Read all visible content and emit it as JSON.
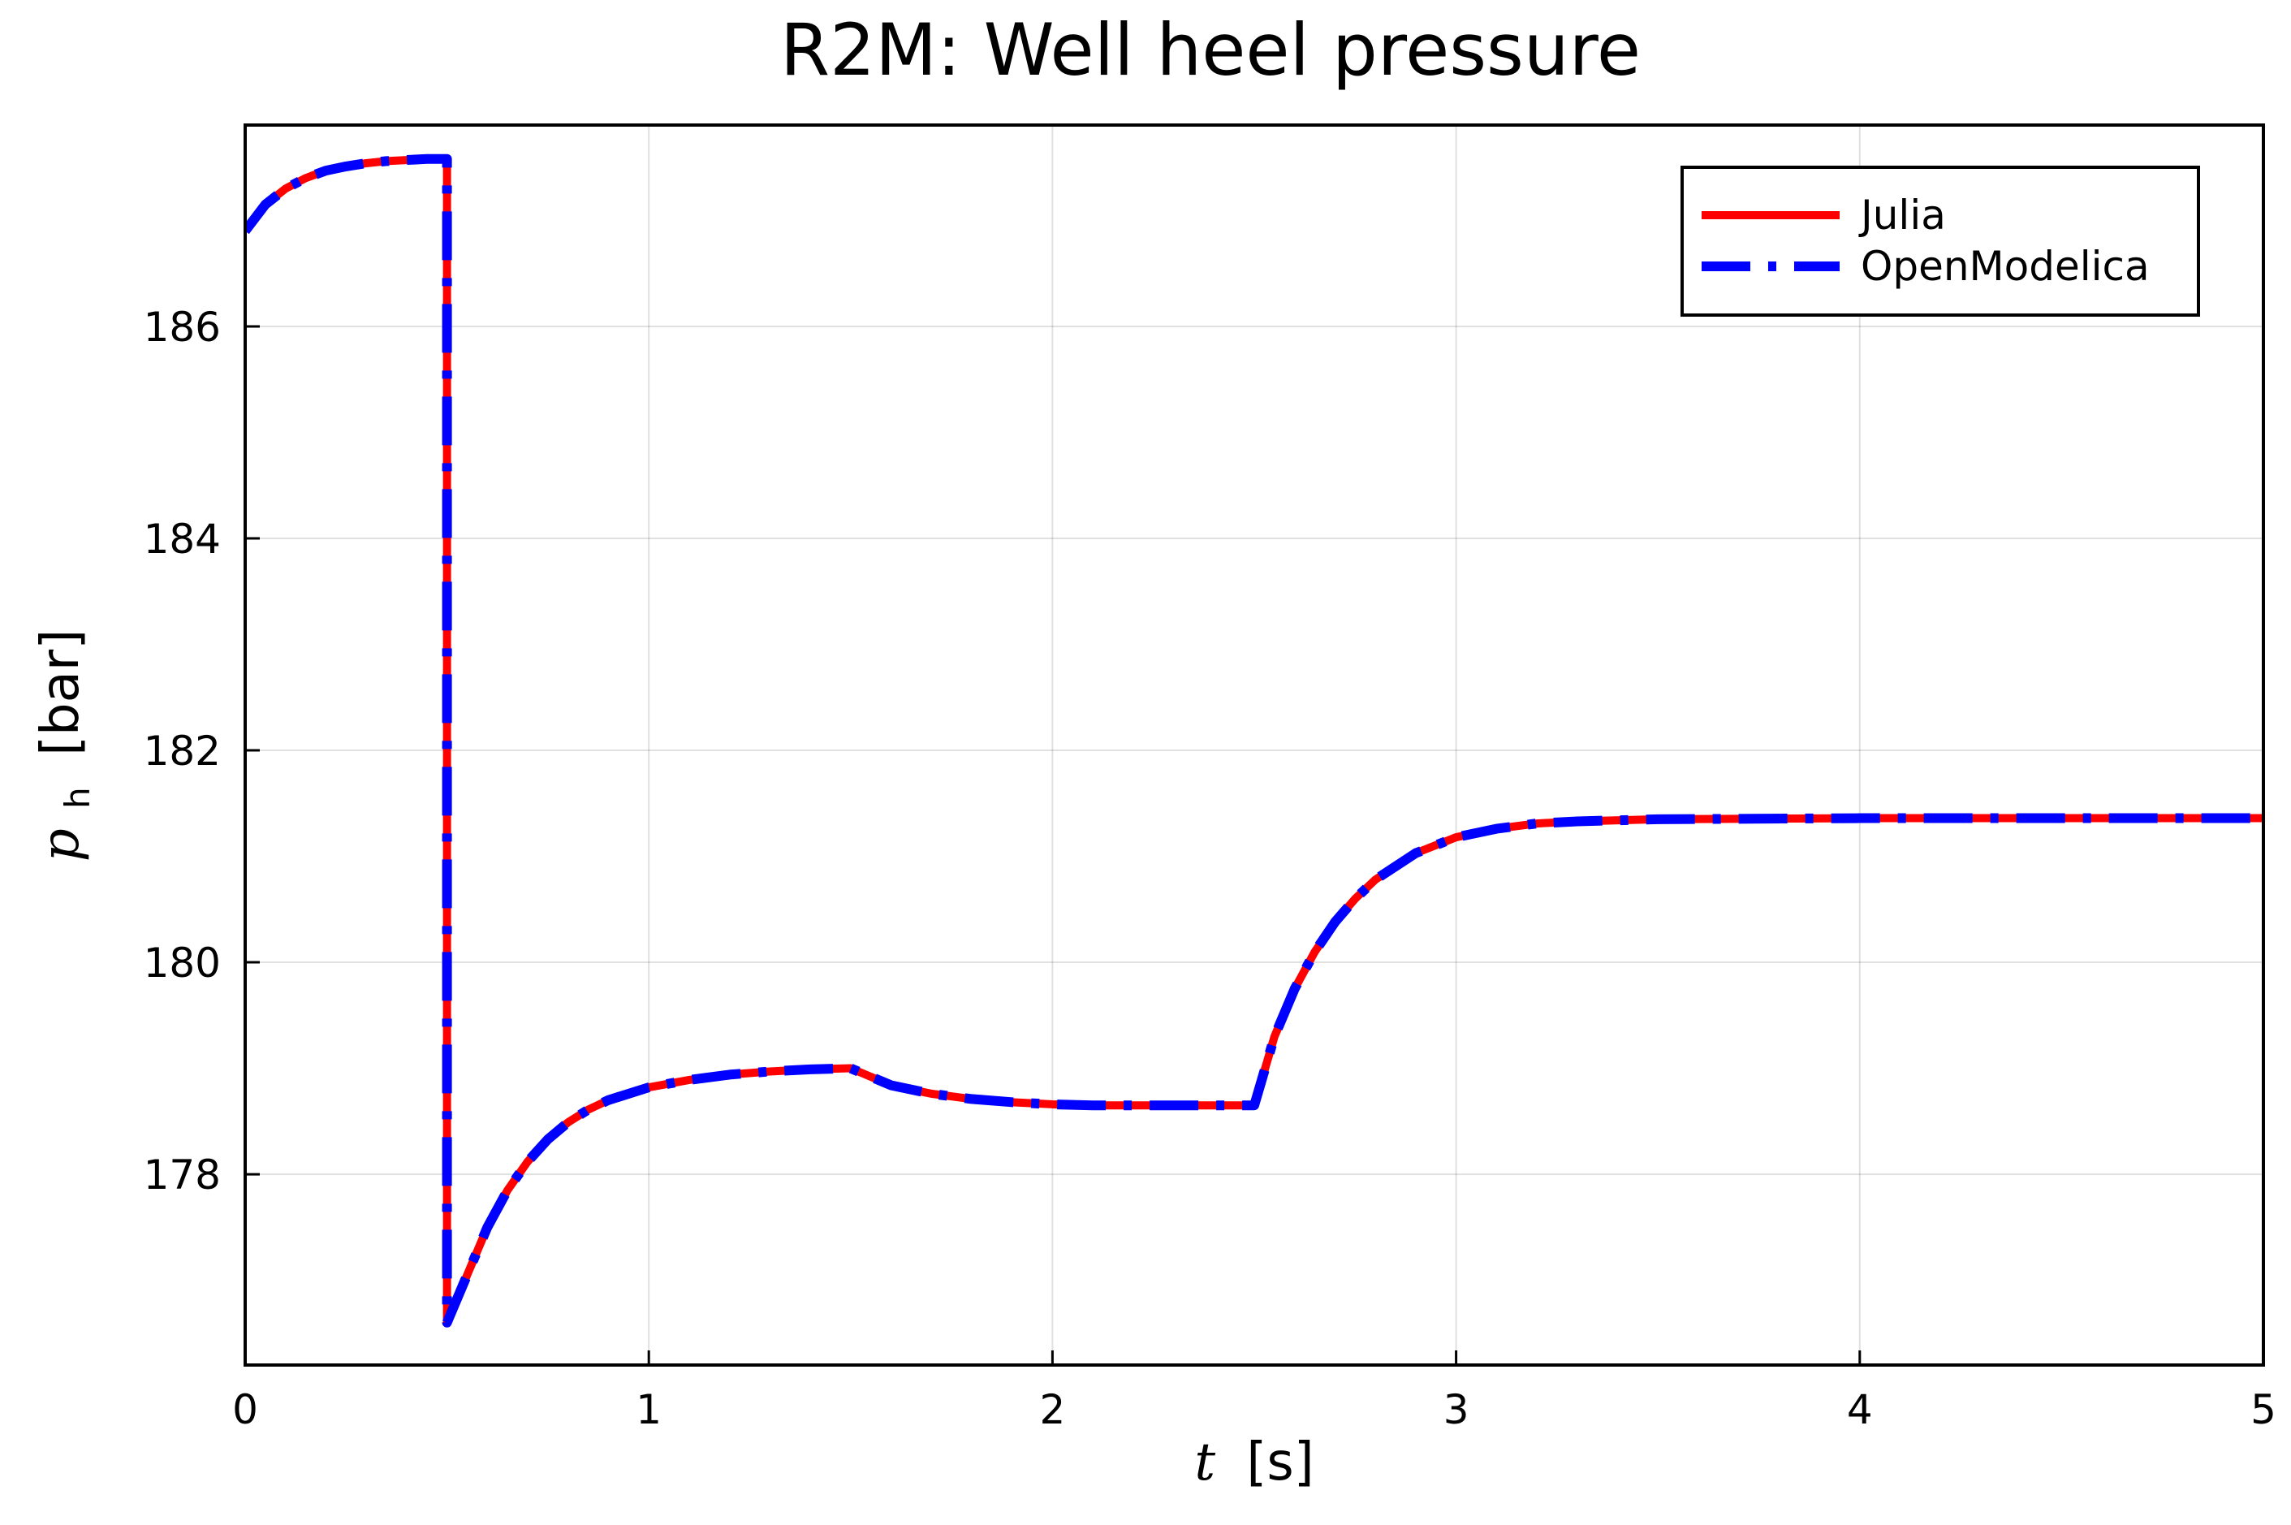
{
  "chart_data": {
    "type": "line",
    "title": "R2M: Well heel pressure",
    "xlabel": {
      "var": "t",
      "unit": "[s]"
    },
    "ylabel": {
      "var": "p",
      "sub": "h",
      "unit": "[bar]"
    },
    "xlim": [
      0,
      5
    ],
    "ylim": [
      176.2,
      187.9
    ],
    "x_ticks": [
      0,
      1,
      2,
      3,
      4,
      5
    ],
    "y_ticks": [
      178,
      180,
      182,
      184,
      186
    ],
    "grid": true,
    "legend_position": "top-right",
    "series": [
      {
        "name": "Julia",
        "color": "#ff0000",
        "style": "solid",
        "points": [
          [
            0.0,
            186.9
          ],
          [
            0.05,
            187.15
          ],
          [
            0.1,
            187.3
          ],
          [
            0.15,
            187.4
          ],
          [
            0.2,
            187.47
          ],
          [
            0.25,
            187.51
          ],
          [
            0.3,
            187.54
          ],
          [
            0.35,
            187.56
          ],
          [
            0.4,
            187.57
          ],
          [
            0.45,
            187.58
          ],
          [
            0.5,
            187.58
          ],
          [
            0.5,
            176.6
          ],
          [
            0.55,
            177.05
          ],
          [
            0.6,
            177.5
          ],
          [
            0.65,
            177.85
          ],
          [
            0.7,
            178.12
          ],
          [
            0.75,
            178.33
          ],
          [
            0.8,
            178.49
          ],
          [
            0.85,
            178.61
          ],
          [
            0.9,
            178.7
          ],
          [
            1.0,
            178.82
          ],
          [
            1.1,
            178.89
          ],
          [
            1.2,
            178.94
          ],
          [
            1.3,
            178.97
          ],
          [
            1.4,
            178.99
          ],
          [
            1.5,
            179.0
          ],
          [
            1.6,
            178.84
          ],
          [
            1.7,
            178.76
          ],
          [
            1.8,
            178.71
          ],
          [
            1.9,
            178.68
          ],
          [
            2.0,
            178.66
          ],
          [
            2.1,
            178.65
          ],
          [
            2.3,
            178.65
          ],
          [
            2.5,
            178.65
          ],
          [
            2.55,
            179.3
          ],
          [
            2.6,
            179.75
          ],
          [
            2.65,
            180.1
          ],
          [
            2.7,
            180.38
          ],
          [
            2.75,
            180.6
          ],
          [
            2.8,
            180.78
          ],
          [
            2.9,
            181.03
          ],
          [
            3.0,
            181.18
          ],
          [
            3.1,
            181.26
          ],
          [
            3.2,
            181.31
          ],
          [
            3.3,
            181.33
          ],
          [
            3.5,
            181.35
          ],
          [
            4.0,
            181.36
          ],
          [
            5.0,
            181.36
          ]
        ]
      },
      {
        "name": "OpenModelica",
        "color": "#0000ff",
        "style": "dashdot",
        "points": [
          [
            0.0,
            186.9
          ],
          [
            0.05,
            187.15
          ],
          [
            0.1,
            187.3
          ],
          [
            0.15,
            187.4
          ],
          [
            0.2,
            187.47
          ],
          [
            0.25,
            187.51
          ],
          [
            0.3,
            187.54
          ],
          [
            0.35,
            187.56
          ],
          [
            0.4,
            187.57
          ],
          [
            0.45,
            187.58
          ],
          [
            0.5,
            187.58
          ],
          [
            0.5,
            176.6
          ],
          [
            0.55,
            177.05
          ],
          [
            0.6,
            177.5
          ],
          [
            0.65,
            177.85
          ],
          [
            0.7,
            178.12
          ],
          [
            0.75,
            178.33
          ],
          [
            0.8,
            178.49
          ],
          [
            0.85,
            178.61
          ],
          [
            0.9,
            178.7
          ],
          [
            1.0,
            178.82
          ],
          [
            1.1,
            178.89
          ],
          [
            1.2,
            178.94
          ],
          [
            1.3,
            178.97
          ],
          [
            1.4,
            178.99
          ],
          [
            1.5,
            179.0
          ],
          [
            1.6,
            178.84
          ],
          [
            1.7,
            178.76
          ],
          [
            1.8,
            178.71
          ],
          [
            1.9,
            178.68
          ],
          [
            2.0,
            178.66
          ],
          [
            2.1,
            178.65
          ],
          [
            2.3,
            178.65
          ],
          [
            2.5,
            178.65
          ],
          [
            2.55,
            179.3
          ],
          [
            2.6,
            179.75
          ],
          [
            2.65,
            180.1
          ],
          [
            2.7,
            180.38
          ],
          [
            2.75,
            180.6
          ],
          [
            2.8,
            180.78
          ],
          [
            2.9,
            181.03
          ],
          [
            3.0,
            181.18
          ],
          [
            3.1,
            181.26
          ],
          [
            3.2,
            181.31
          ],
          [
            3.3,
            181.33
          ],
          [
            3.5,
            181.35
          ],
          [
            4.0,
            181.36
          ],
          [
            5.0,
            181.36
          ]
        ]
      }
    ]
  }
}
